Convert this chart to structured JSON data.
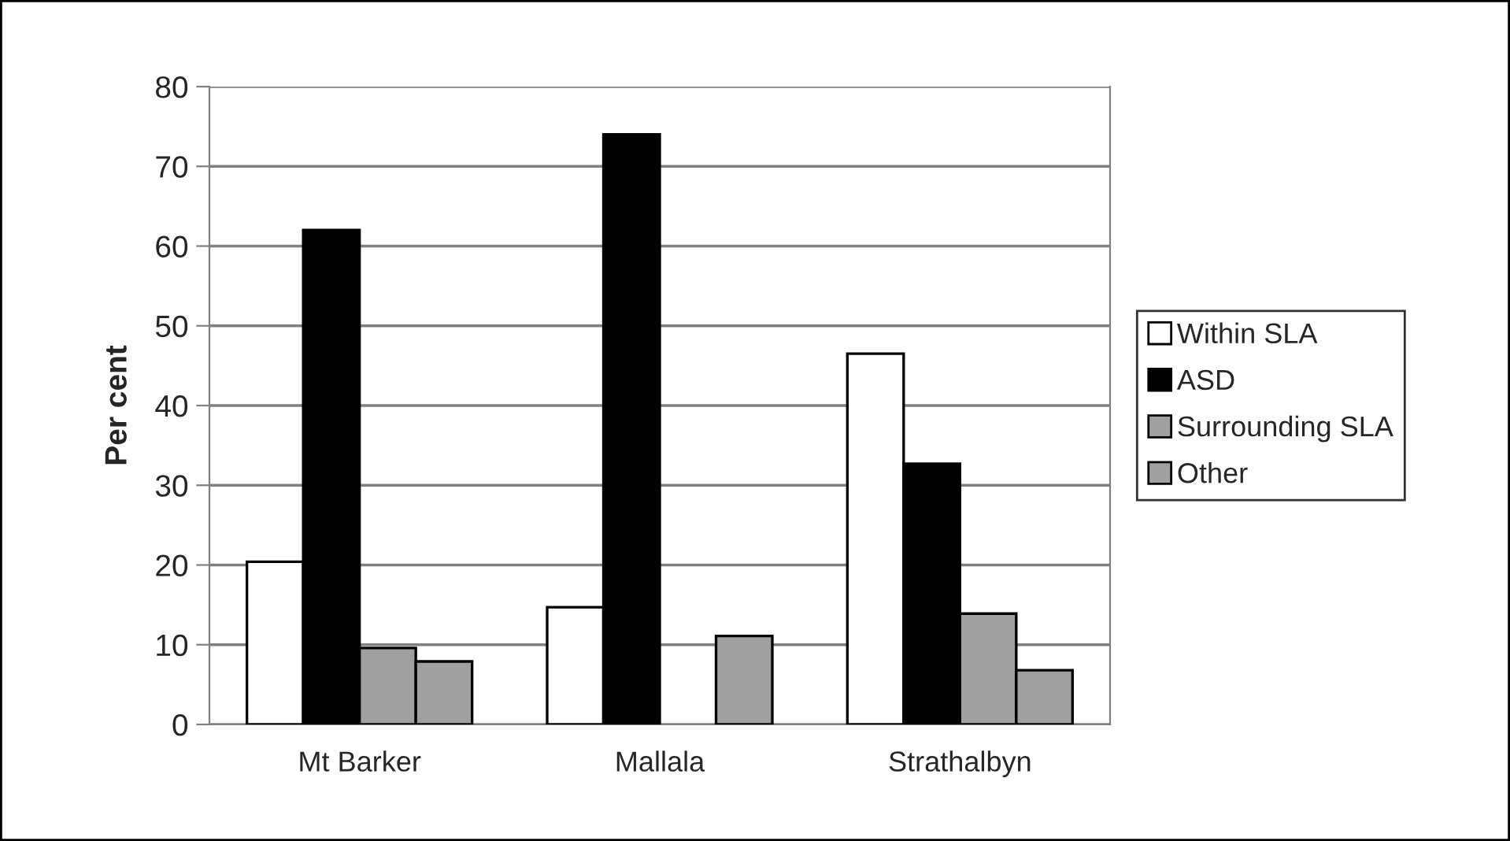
{
  "chart_data": {
    "type": "bar",
    "ylabel": "Per cent",
    "categories": [
      "Mt Barker",
      "Mallala",
      "Strathalbyn"
    ],
    "series": [
      {
        "name": "Within SLA",
        "color": "#ffffff",
        "values": [
          20.4,
          14.7,
          46.5
        ]
      },
      {
        "name": "ASD",
        "color": "#000000",
        "values": [
          62,
          74,
          32.7
        ]
      },
      {
        "name": "Surrounding SLA",
        "color": "#a0a0a0",
        "values": [
          9.6,
          null,
          13.9
        ]
      },
      {
        "name": "Other",
        "color": "#a0a0a0",
        "values": [
          7.9,
          11.1,
          6.8
        ]
      }
    ],
    "ylim": [
      0,
      80
    ],
    "yticks": [
      0,
      10,
      20,
      30,
      40,
      50,
      60,
      70,
      80
    ],
    "grid": "y",
    "legend": "right"
  }
}
